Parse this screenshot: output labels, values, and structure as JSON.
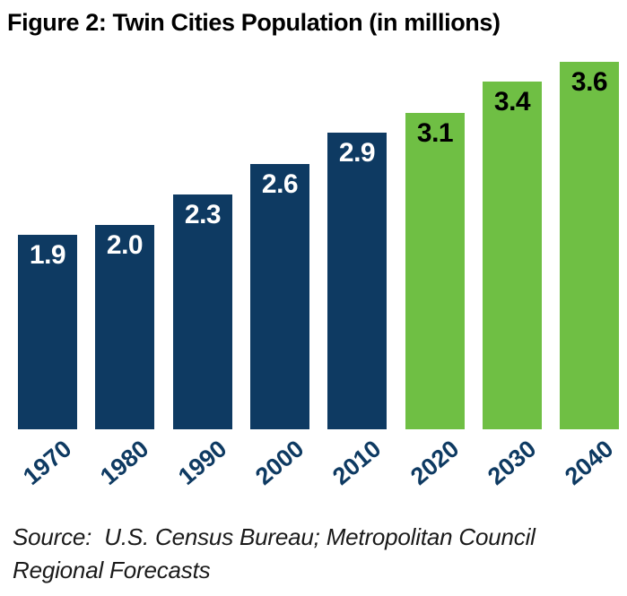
{
  "title": "Figure 2: Twin Cities Population (in millions)",
  "source": {
    "line1": "Source:  U.S. Census Bureau; Metropolitan Council",
    "line2": "Regional Forecasts"
  },
  "colors": {
    "title_text": "#000000",
    "source_text": "#1a1a1a",
    "axis_label": "#0e3a62",
    "census_bar": "#0e3a62",
    "census_value_label": "#ffffff",
    "forecast_bar": "#6fbf44",
    "forecast_value_label": "#000000",
    "background": "#ffffff"
  },
  "chart_data": {
    "type": "bar",
    "title": "Figure 2: Twin Cities Population (in millions)",
    "categories": [
      "1970",
      "1980",
      "1990",
      "2000",
      "2010",
      "2020",
      "2030",
      "2040"
    ],
    "values": [
      1.9,
      2.0,
      2.3,
      2.6,
      2.9,
      3.1,
      3.4,
      3.6
    ],
    "value_label_format": "one-decimal",
    "xlabel": "",
    "ylabel": "",
    "ylim": [
      0,
      3.7
    ],
    "grid": false,
    "legend": "none",
    "x_tick_rotation_deg": -40,
    "segments": [
      {
        "name": "census-actual",
        "start_index": 0,
        "end_index": 4,
        "bar_color": "#0e3a62",
        "value_label_color": "#ffffff"
      },
      {
        "name": "forecast",
        "start_index": 5,
        "end_index": 7,
        "bar_color": "#6fbf44",
        "value_label_color": "#000000"
      }
    ]
  }
}
